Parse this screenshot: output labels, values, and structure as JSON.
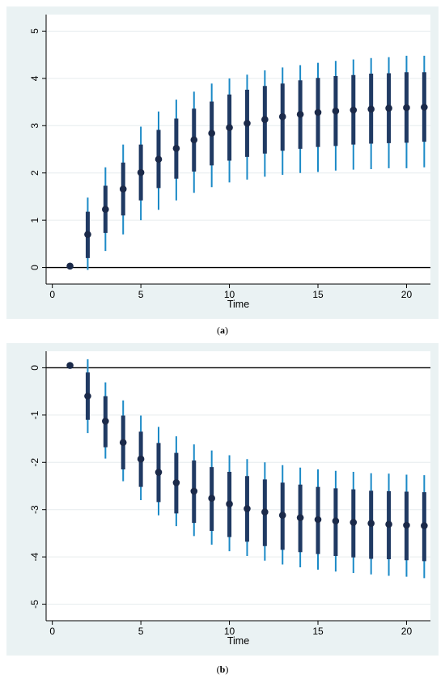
{
  "colors": {
    "panel_bg": "#eaf2f3",
    "plot_bg": "#ffffff",
    "grid": "#e6ecee",
    "ci_outer": "#1b8ac7",
    "ci_inner": "#203a63",
    "point": "#1b2a4a",
    "zero_line": "#000000"
  },
  "captions": [
    "a",
    "b"
  ],
  "chart_data": [
    {
      "type": "scatter",
      "caption": "a",
      "xlabel": "Time",
      "ylabel": "",
      "xlim": [
        0,
        21
      ],
      "ylim": [
        0,
        5
      ],
      "xticks": [
        0,
        5,
        10,
        15,
        20
      ],
      "yticks": [
        0,
        1,
        2,
        3,
        4,
        5
      ],
      "grid": true,
      "zero_line": 0,
      "x": [
        1,
        2,
        3,
        4,
        5,
        6,
        7,
        8,
        9,
        10,
        11,
        12,
        13,
        14,
        15,
        16,
        17,
        18,
        19,
        20,
        21
      ],
      "y": [
        0.03,
        0.7,
        1.23,
        1.66,
        2.01,
        2.29,
        2.52,
        2.7,
        2.84,
        2.96,
        3.05,
        3.13,
        3.19,
        3.24,
        3.28,
        3.31,
        3.33,
        3.35,
        3.37,
        3.38,
        3.39
      ],
      "ci_inner": [
        [
          0.03,
          0.03
        ],
        [
          0.2,
          1.18
        ],
        [
          0.73,
          1.73
        ],
        [
          1.1,
          2.22
        ],
        [
          1.42,
          2.6
        ],
        [
          1.68,
          2.91
        ],
        [
          1.88,
          3.15
        ],
        [
          2.03,
          3.36
        ],
        [
          2.16,
          3.51
        ],
        [
          2.26,
          3.66
        ],
        [
          2.34,
          3.76
        ],
        [
          2.41,
          3.84
        ],
        [
          2.47,
          3.89
        ],
        [
          2.51,
          3.96
        ],
        [
          2.55,
          4.01
        ],
        [
          2.57,
          4.05
        ],
        [
          2.6,
          4.07
        ],
        [
          2.62,
          4.1
        ],
        [
          2.63,
          4.11
        ],
        [
          2.64,
          4.13
        ],
        [
          2.66,
          4.13
        ]
      ],
      "ci_outer": [
        [
          0.03,
          0.03
        ],
        [
          -0.05,
          1.48
        ],
        [
          0.35,
          2.12
        ],
        [
          0.7,
          2.6
        ],
        [
          1.0,
          2.98
        ],
        [
          1.22,
          3.3
        ],
        [
          1.42,
          3.55
        ],
        [
          1.58,
          3.72
        ],
        [
          1.7,
          3.89
        ],
        [
          1.8,
          4.0
        ],
        [
          1.86,
          4.08
        ],
        [
          1.92,
          4.17
        ],
        [
          1.96,
          4.23
        ],
        [
          2.0,
          4.28
        ],
        [
          2.02,
          4.33
        ],
        [
          2.05,
          4.37
        ],
        [
          2.07,
          4.4
        ],
        [
          2.08,
          4.43
        ],
        [
          2.1,
          4.45
        ],
        [
          2.1,
          4.48
        ],
        [
          2.12,
          4.48
        ]
      ]
    },
    {
      "type": "scatter",
      "caption": "b",
      "xlabel": "Time",
      "ylabel": "",
      "xlim": [
        0,
        21
      ],
      "ylim": [
        -5,
        0
      ],
      "xticks": [
        0,
        5,
        10,
        15,
        20
      ],
      "yticks": [
        0,
        -1,
        -2,
        -3,
        -4,
        -5
      ],
      "grid": true,
      "zero_line": 0,
      "x": [
        1,
        2,
        3,
        4,
        5,
        6,
        7,
        8,
        9,
        10,
        11,
        12,
        13,
        14,
        15,
        16,
        17,
        18,
        19,
        20,
        21
      ],
      "y": [
        0.05,
        -0.6,
        -1.13,
        -1.58,
        -1.93,
        -2.21,
        -2.43,
        -2.61,
        -2.76,
        -2.88,
        -2.98,
        -3.05,
        -3.12,
        -3.17,
        -3.21,
        -3.24,
        -3.27,
        -3.29,
        -3.31,
        -3.33,
        -3.34
      ],
      "ci_inner": [
        [
          0.05,
          0.05
        ],
        [
          -1.1,
          -0.1
        ],
        [
          -1.68,
          -0.6
        ],
        [
          -2.15,
          -1.01
        ],
        [
          -2.52,
          -1.35
        ],
        [
          -2.84,
          -1.59
        ],
        [
          -3.08,
          -1.8
        ],
        [
          -3.28,
          -1.96
        ],
        [
          -3.45,
          -2.1
        ],
        [
          -3.58,
          -2.2
        ],
        [
          -3.68,
          -2.29
        ],
        [
          -3.77,
          -2.36
        ],
        [
          -3.85,
          -2.43
        ],
        [
          -3.9,
          -2.47
        ],
        [
          -3.94,
          -2.52
        ],
        [
          -3.98,
          -2.55
        ],
        [
          -4.01,
          -2.57
        ],
        [
          -4.04,
          -2.6
        ],
        [
          -4.05,
          -2.61
        ],
        [
          -4.07,
          -2.62
        ],
        [
          -4.09,
          -2.63
        ]
      ],
      "ci_outer": [
        [
          0.05,
          0.05
        ],
        [
          -1.38,
          0.18
        ],
        [
          -1.92,
          -0.31
        ],
        [
          -2.4,
          -0.69
        ],
        [
          -2.8,
          -1.01
        ],
        [
          -3.12,
          -1.25
        ],
        [
          -3.35,
          -1.45
        ],
        [
          -3.56,
          -1.62
        ],
        [
          -3.74,
          -1.75
        ],
        [
          -3.88,
          -1.85
        ],
        [
          -3.98,
          -1.93
        ],
        [
          -4.08,
          -2.0
        ],
        [
          -4.16,
          -2.06
        ],
        [
          -4.22,
          -2.11
        ],
        [
          -4.27,
          -2.15
        ],
        [
          -4.31,
          -2.18
        ],
        [
          -4.34,
          -2.2
        ],
        [
          -4.37,
          -2.23
        ],
        [
          -4.4,
          -2.24
        ],
        [
          -4.42,
          -2.26
        ],
        [
          -4.45,
          -2.27
        ]
      ]
    }
  ]
}
